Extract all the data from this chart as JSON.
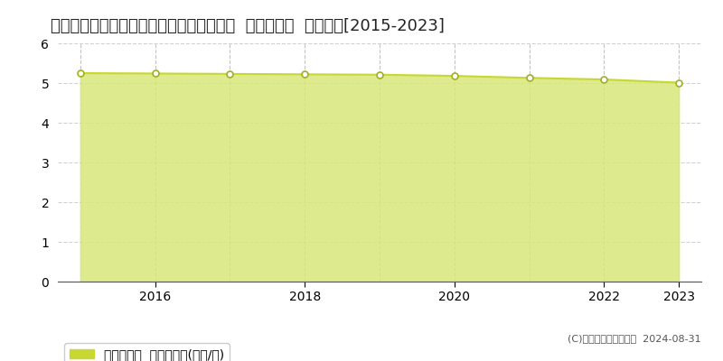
{
  "title": "石川県鹿島郡中能登町最勝講る４６番１外  基準地価格  地価推移[2015-2023]",
  "years": [
    2015,
    2016,
    2017,
    2018,
    2019,
    2020,
    2021,
    2022,
    2023
  ],
  "values": [
    5.25,
    5.24,
    5.23,
    5.22,
    5.21,
    5.18,
    5.13,
    5.09,
    5.01
  ],
  "ylim": [
    0,
    6
  ],
  "yticks": [
    0,
    1,
    2,
    3,
    4,
    5,
    6
  ],
  "xticks": [
    2016,
    2018,
    2020,
    2022,
    2023
  ],
  "line_color": "#c8d832",
  "fill_color": "#d8e87a",
  "fill_alpha": 0.85,
  "marker_color": "white",
  "marker_edge_color": "#a0b020",
  "bg_color": "#ffffff",
  "plot_bg_color": "#ffffff",
  "grid_color": "#cccccc",
  "vline_color": "#aaaaaa",
  "legend_label": "基準地価格  平均坪単価(万円/坪)",
  "legend_box_color": "#c8d832",
  "copyright_text": "(C)土地価格ドットコム  2024-08-31",
  "title_fontsize": 13,
  "axis_fontsize": 10,
  "legend_fontsize": 10
}
